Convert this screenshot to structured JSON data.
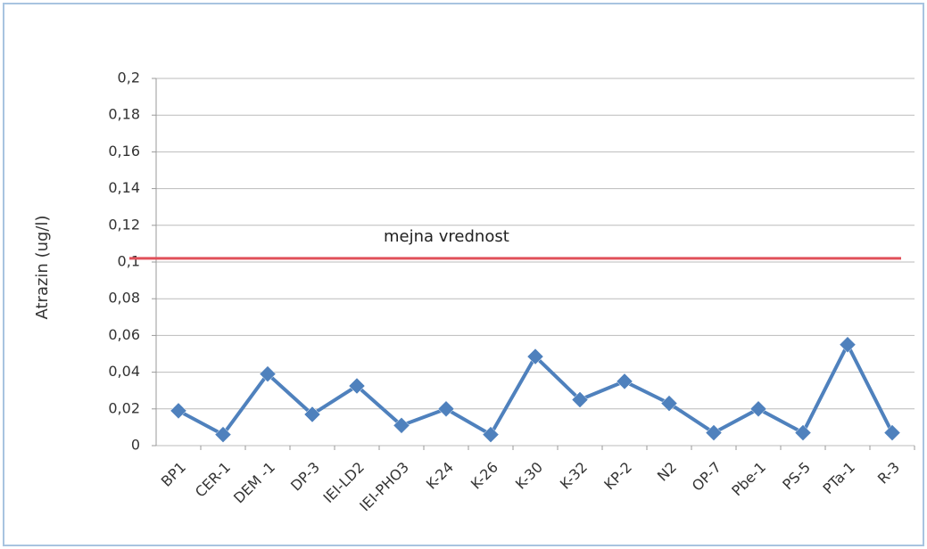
{
  "chart_data": {
    "type": "line",
    "ylabel": "Atrazin (ug/l)",
    "categories": [
      "BP1",
      "CER-1",
      "DEM -1",
      "DP-3",
      "IEI-LD2",
      "IEI-PHO3",
      "K-24",
      "K-26",
      "K-30",
      "K-32",
      "KP-2",
      "N2",
      "OP-7",
      "Pbe-1",
      "PS-5",
      "PTa-1",
      "R-3"
    ],
    "values": [
      0.019,
      0.006,
      0.039,
      0.017,
      0.0325,
      0.011,
      0.02,
      0.006,
      0.0485,
      0.025,
      0.035,
      0.023,
      0.007,
      0.02,
      0.007,
      0.055,
      0.007
    ],
    "color": "#4f81bd",
    "ylim": [
      0,
      0.2
    ],
    "yticks": [
      0,
      {
        "value": 0.02,
        "label": "0,02"
      },
      {
        "value": 0.04,
        "label": "0,04"
      },
      {
        "value": 0.06,
        "label": "0,06"
      },
      {
        "value": 0.08,
        "label": "0,08"
      },
      {
        "value": 0.1,
        "label": "0,1"
      },
      {
        "value": 0.12,
        "label": "0,12"
      },
      {
        "value": 0.14,
        "label": "0,14"
      },
      {
        "value": 0.16,
        "label": "0,16"
      },
      {
        "value": 0.18,
        "label": "0,18"
      },
      {
        "value": 0.2,
        "label": "0,2"
      }
    ],
    "grid": true,
    "reference_line": {
      "value": 0.102,
      "label": "mejna vrednost",
      "color": "#e0505a"
    }
  }
}
